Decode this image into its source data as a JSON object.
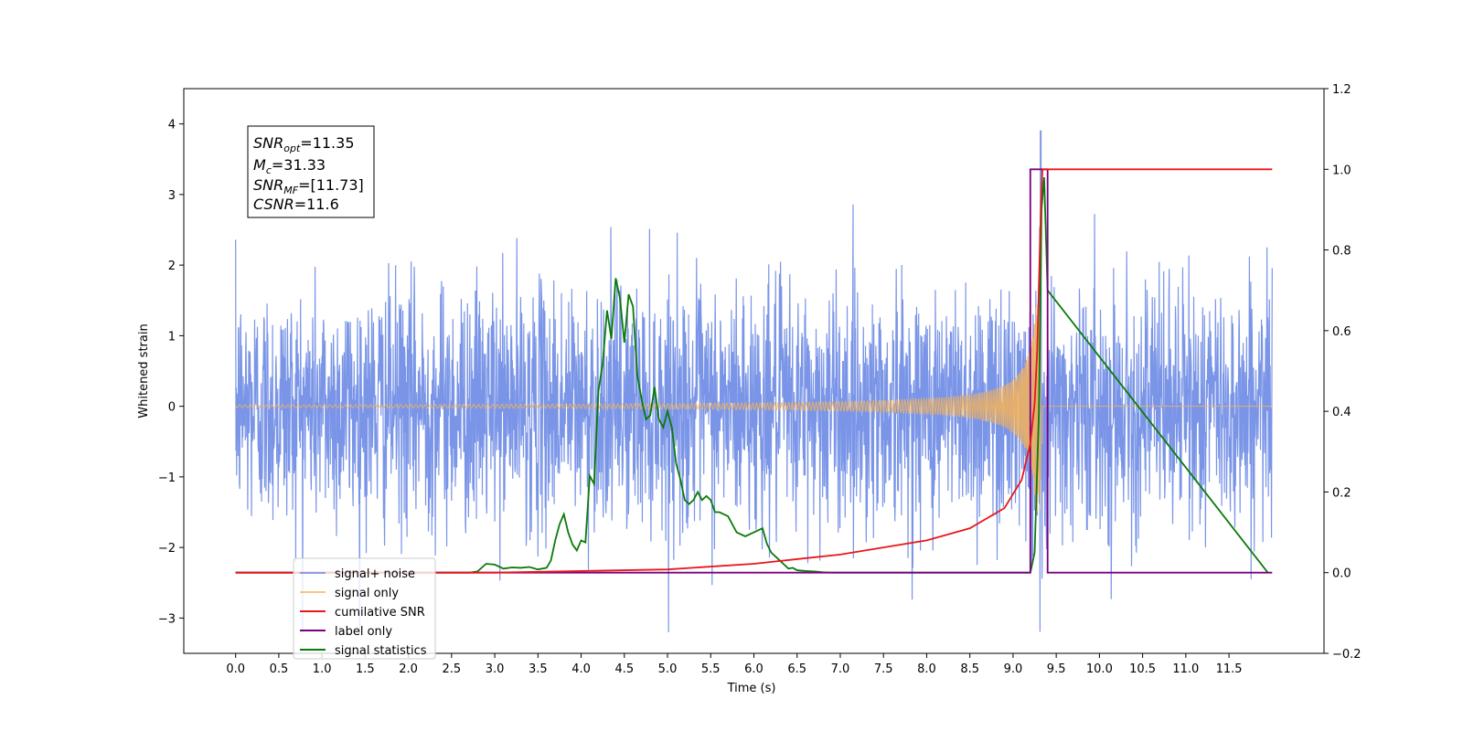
{
  "chart_data": {
    "type": "line",
    "xlabel": "Time (s)",
    "ylabel": "Whitened strain",
    "xlim": [
      -0.6,
      12.6
    ],
    "ylim": [
      -3.5,
      4.5
    ],
    "y2lim": [
      -0.2,
      1.2
    ],
    "x_ticks": [
      "0.0",
      "0.5",
      "1.0",
      "1.5",
      "2.0",
      "2.5",
      "3.0",
      "3.5",
      "4.0",
      "4.5",
      "5.0",
      "5.5",
      "6.0",
      "6.5",
      "7.0",
      "7.5",
      "8.0",
      "8.5",
      "9.0",
      "9.5",
      "10.0",
      "10.5",
      "11.0",
      "11.5"
    ],
    "y_ticks": [
      "4",
      "3",
      "2",
      "1",
      "0",
      "−1",
      "−2",
      "−3"
    ],
    "y2_ticks": [
      "1.2",
      "1.0",
      "0.8",
      "0.6",
      "0.4",
      "0.2",
      "0.0",
      "−0.2"
    ],
    "grid": false,
    "legend_position": "lower-left",
    "annotation": {
      "line1": {
        "sym": "SNR",
        "sub": "opt",
        "rest": "=11.35"
      },
      "line2": {
        "sym": "M",
        "sub": "c",
        "rest": "=31.33"
      },
      "line3": {
        "sym": "SNR",
        "sub": "MF",
        "rest": "=[11.73]"
      },
      "line4": {
        "sym": "CSNR",
        "sub": "",
        "rest": "=11.6"
      }
    },
    "series": [
      {
        "name": "signal+ noise",
        "color": "#6c8ae4",
        "axis": "left",
        "t_range": [
          0,
          12
        ],
        "noise_sigma": 0.85,
        "peak_at": 9.32,
        "peak_value": 4.1
      },
      {
        "name": "signal only",
        "color": "#f5b35a",
        "axis": "left",
        "t_range": [
          0,
          12
        ],
        "chirp_merger_time": 9.32,
        "max_amplitude": 1.5
      },
      {
        "name": "cumilative SNR",
        "color": "#e8171a",
        "axis": "right",
        "x": [
          0.0,
          3.0,
          5.0,
          6.0,
          7.0,
          8.0,
          8.5,
          8.9,
          9.1,
          9.2,
          9.25,
          9.28,
          9.3,
          9.32,
          9.34,
          9.4,
          12.0
        ],
        "y": [
          0.0,
          0.0,
          0.008,
          0.022,
          0.045,
          0.08,
          0.11,
          0.16,
          0.23,
          0.32,
          0.42,
          0.55,
          0.72,
          0.88,
          1.0,
          1.0,
          1.0
        ]
      },
      {
        "name": "label only",
        "color": "#7a0080",
        "axis": "right",
        "x": [
          0.0,
          9.2,
          9.2,
          9.4,
          9.4,
          12.0
        ],
        "y": [
          0.0,
          0.0,
          1.0,
          1.0,
          0.0,
          0.0
        ]
      },
      {
        "name": "signal statistics",
        "color": "#0a7a0a",
        "axis": "right",
        "x": [
          0.0,
          2.7,
          2.8,
          2.9,
          3.0,
          3.1,
          3.2,
          3.3,
          3.4,
          3.5,
          3.6,
          3.65,
          3.7,
          3.75,
          3.8,
          3.85,
          3.9,
          3.95,
          4.0,
          4.05,
          4.1,
          4.15,
          4.2,
          4.25,
          4.3,
          4.35,
          4.4,
          4.45,
          4.5,
          4.55,
          4.6,
          4.65,
          4.7,
          4.75,
          4.8,
          4.85,
          4.9,
          4.95,
          5.0,
          5.05,
          5.1,
          5.15,
          5.2,
          5.25,
          5.3,
          5.35,
          5.4,
          5.45,
          5.5,
          5.55,
          5.6,
          5.7,
          5.8,
          5.9,
          6.0,
          6.05,
          6.1,
          6.15,
          6.2,
          6.25,
          6.3,
          6.35,
          6.4,
          6.45,
          6.5,
          6.6,
          6.7,
          6.8,
          6.9,
          7.0,
          7.1,
          7.2,
          7.3,
          7.5,
          9.0,
          9.1,
          9.15,
          9.2,
          9.25,
          9.3,
          9.33,
          9.36,
          9.4,
          11.95
        ],
        "y": [
          0.0,
          0.0,
          0.003,
          0.022,
          0.02,
          0.01,
          0.013,
          0.012,
          0.014,
          0.008,
          0.012,
          0.03,
          0.08,
          0.12,
          0.145,
          0.1,
          0.07,
          0.055,
          0.08,
          0.075,
          0.24,
          0.22,
          0.45,
          0.52,
          0.65,
          0.58,
          0.73,
          0.68,
          0.57,
          0.69,
          0.66,
          0.49,
          0.43,
          0.38,
          0.39,
          0.46,
          0.38,
          0.36,
          0.4,
          0.36,
          0.27,
          0.23,
          0.18,
          0.17,
          0.18,
          0.2,
          0.18,
          0.19,
          0.18,
          0.15,
          0.15,
          0.14,
          0.1,
          0.09,
          0.1,
          0.105,
          0.11,
          0.072,
          0.05,
          0.04,
          0.03,
          0.02,
          0.01,
          0.012,
          0.006,
          0.004,
          0.003,
          0.001,
          0.0,
          0.0,
          0.0,
          0.0,
          0.0,
          0.0,
          0.0,
          0.0,
          0.0,
          0.0,
          0.05,
          0.4,
          0.9,
          0.98,
          0.7,
          0.0
        ]
      }
    ]
  }
}
